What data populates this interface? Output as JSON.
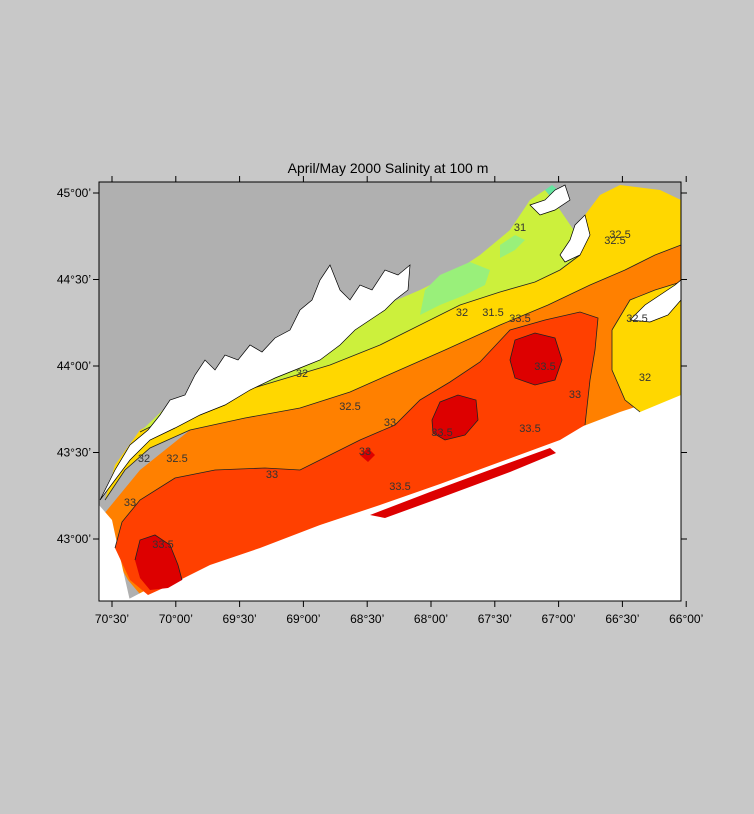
{
  "title": "April/May 2000  Salinity at 100 m",
  "x_ticks": [
    "70°30’",
    "70°00’",
    "69°30’",
    "69°00’",
    "68°30’",
    "68°00’",
    "67°30’",
    "67°00’",
    "66°30’",
    "66°00’"
  ],
  "y_ticks": [
    "45°00’",
    "44°30’",
    "44°00’",
    "43°30’",
    "43°00’"
  ],
  "contour_labels": [
    "31",
    "31.5",
    "32",
    "32",
    "32",
    "32.5",
    "32.5",
    "32.5",
    "33",
    "33",
    "33",
    "33",
    "33",
    "33.5",
    "33.5",
    "33.5",
    "33.5",
    "33.5",
    "33.5",
    "32.5",
    "32",
    "32.5"
  ],
  "colors": {
    "background": "#c8c8c8",
    "land": "#b0b0b0",
    "no_data": "#ffffff",
    "band_lt_31": "#66e6a0",
    "band_31_315": "#99f07a",
    "band_315_32": "#ccf03c",
    "band_32_325": "#ffd700",
    "band_325_33": "#ff8000",
    "band_33_335": "#ff4000",
    "band_gt_335": "#dd0000"
  }
}
